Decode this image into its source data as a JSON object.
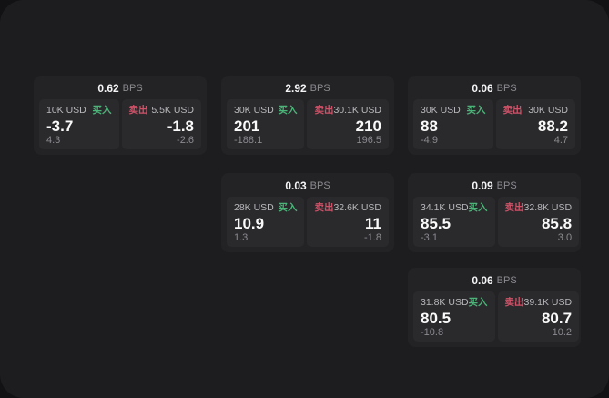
{
  "colors": {
    "page_bg": "#121214",
    "surface_bg": "#1d1d1f",
    "card_bg": "#232326",
    "panel_bg": "#2a2a2d",
    "buy_green": "#4cb478",
    "sell_red": "#cf5268",
    "value_white": "#fafafa",
    "muted_gray": "#8b8b90"
  },
  "bps_unit": "BPS",
  "buy_label": "买入",
  "sell_label": "卖出",
  "cards": [
    {
      "bps": "0.62",
      "buy": {
        "amount": "10K USD",
        "value": "-3.7",
        "delta": "4.3"
      },
      "sell": {
        "amount": "5.5K USD",
        "value": "-1.8",
        "delta": "-2.6"
      }
    },
    {
      "bps": "2.92",
      "buy": {
        "amount": "30K USD",
        "value": "201",
        "delta": "-188.1"
      },
      "sell": {
        "amount": "30.1K USD",
        "value": "210",
        "delta": "196.5"
      }
    },
    {
      "bps": "0.06",
      "buy": {
        "amount": "30K USD",
        "value": "88",
        "delta": "-4.9"
      },
      "sell": {
        "amount": "30K USD",
        "value": "88.2",
        "delta": "4.7"
      }
    },
    {
      "bps": "0.03",
      "buy": {
        "amount": "28K USD",
        "value": "10.9",
        "delta": "1.3"
      },
      "sell": {
        "amount": "32.6K USD",
        "value": "11",
        "delta": "-1.8"
      }
    },
    {
      "bps": "0.09",
      "buy": {
        "amount": "34.1K USD",
        "value": "85.5",
        "delta": "-3.1"
      },
      "sell": {
        "amount": "32.8K USD",
        "value": "85.8",
        "delta": "3.0"
      }
    },
    {
      "bps": "0.06",
      "buy": {
        "amount": "31.8K USD",
        "value": "80.5",
        "delta": "-10.8"
      },
      "sell": {
        "amount": "39.1K USD",
        "value": "80.7",
        "delta": "10.2"
      }
    }
  ]
}
